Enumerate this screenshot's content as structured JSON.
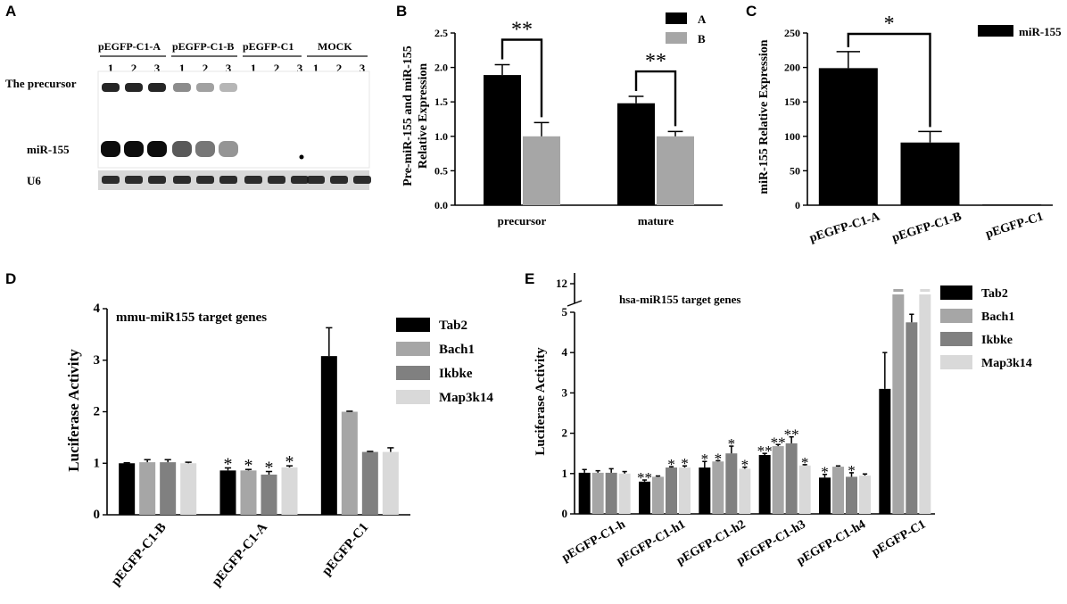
{
  "panel_letters": [
    "A",
    "B",
    "C",
    "D",
    "E"
  ],
  "blot": {
    "groups": [
      "pEGFP-C1-A",
      "pEGFP-C1-B",
      "pEGFP-C1",
      "MOCK"
    ],
    "lanes": [
      "1",
      "2",
      "3"
    ],
    "row_labels": [
      "The precursor",
      "miR-155",
      "U6"
    ]
  },
  "chart_data": [
    {
      "panel": "B",
      "type": "bar",
      "ylabel": "Pre-miR-155 and miR-155\nRelative Expression",
      "xlabel": "",
      "categories": [
        "precursor",
        "mature"
      ],
      "series": [
        {
          "name": "A",
          "color": "#000000",
          "values": [
            1.89,
            1.48
          ],
          "errors": [
            0.15,
            0.1
          ]
        },
        {
          "name": "B",
          "color": "#a6a6a6",
          "values": [
            1.0,
            1.0
          ],
          "errors": [
            0.2,
            0.07
          ]
        }
      ],
      "ylim": [
        0,
        2.5
      ],
      "yticks": [
        "0.0",
        "0.5",
        "1.0",
        "1.5",
        "2.0",
        "2.5"
      ],
      "annotations": [
        "**",
        "**"
      ],
      "legend": "top-right"
    },
    {
      "panel": "C",
      "type": "bar",
      "ylabel": "miR-155 Relative Expression",
      "xlabel": "",
      "categories": [
        "pEGFP-C1-A",
        "pEGFP-C1-B",
        "pEGFP-C1"
      ],
      "series": [
        {
          "name": "miR-155",
          "color": "#000000",
          "values": [
            199,
            91,
            1
          ],
          "errors": [
            24,
            16,
            0
          ]
        }
      ],
      "ylim": [
        0,
        250
      ],
      "yticks": [
        "0",
        "50",
        "100",
        "150",
        "200",
        "250"
      ],
      "annotations": [
        "*"
      ],
      "legend": "top-right"
    },
    {
      "panel": "D",
      "type": "bar",
      "title": "mmu-miR155 target genes",
      "ylabel": "Luciferase Activity",
      "xlabel": "",
      "categories": [
        "pEGFP-C1-B",
        "pEGFP-C1-A",
        "pEGFP-C1"
      ],
      "series": [
        {
          "name": "Tab2",
          "color": "#000000",
          "values": [
            1.0,
            0.86,
            3.08
          ],
          "errors": [
            0.01,
            0.05,
            0.55
          ],
          "stars": [
            "",
            "*",
            ""
          ]
        },
        {
          "name": "Bach1",
          "color": "#a6a6a6",
          "values": [
            1.02,
            0.86,
            2.0
          ],
          "errors": [
            0.05,
            0.02,
            0.01
          ],
          "stars": [
            "",
            "*",
            ""
          ]
        },
        {
          "name": "Ikbke",
          "color": "#808080",
          "values": [
            1.02,
            0.78,
            1.22
          ],
          "errors": [
            0.05,
            0.06,
            0.01
          ],
          "stars": [
            "",
            "*",
            ""
          ]
        },
        {
          "name": "Map3k14",
          "color": "#d9d9d9",
          "values": [
            1.0,
            0.92,
            1.22
          ],
          "errors": [
            0.02,
            0.03,
            0.08
          ],
          "stars": [
            "",
            "*",
            ""
          ]
        }
      ],
      "ylim": [
        0,
        4
      ],
      "yticks": [
        "0",
        "1",
        "2",
        "3",
        "4"
      ],
      "legend": "right"
    },
    {
      "panel": "E",
      "type": "bar",
      "title": "hsa-miR155 target genes",
      "ylabel": "Luciferase Activity",
      "xlabel": "",
      "categories": [
        "pEGFP-C1-h",
        "pEGFP-C1-h1",
        "pEGFP-C1-h2",
        "pEGFP-C1-h3",
        "pEGFP-C1-h4",
        "pEGFP-C1"
      ],
      "series": [
        {
          "name": "Tab2",
          "color": "#000000",
          "values": [
            1.02,
            0.8,
            1.15,
            1.46,
            0.9,
            3.1
          ],
          "errors": [
            0.08,
            0.04,
            0.15,
            0.04,
            0.08,
            0.9
          ],
          "stars": [
            "",
            "**",
            "*",
            "**",
            "*",
            ""
          ]
        },
        {
          "name": "Bach1",
          "color": "#a6a6a6",
          "values": [
            1.02,
            0.92,
            1.3,
            1.68,
            1.17,
            12.1
          ],
          "errors": [
            0.05,
            0.02,
            0.02,
            0.04,
            0.02,
            0.1
          ],
          "stars": [
            "",
            "",
            "*",
            "**",
            "",
            ""
          ]
        },
        {
          "name": "Ikbke",
          "color": "#808080",
          "values": [
            1.02,
            1.15,
            1.5,
            1.75,
            0.92,
            4.75
          ],
          "errors": [
            0.1,
            0.02,
            0.18,
            0.16,
            0.1,
            0.2
          ],
          "stars": [
            "",
            "*",
            "*",
            "**",
            "*",
            ""
          ]
        },
        {
          "name": "Map3k14",
          "color": "#d9d9d9",
          "values": [
            1.0,
            1.15,
            1.12,
            1.2,
            0.95,
            11.9
          ],
          "errors": [
            0.05,
            0.04,
            0.04,
            0.02,
            0.04,
            0.1
          ],
          "stars": [
            "",
            "*",
            "*",
            "*",
            "",
            ""
          ]
        }
      ],
      "ylim": [
        0,
        5
      ],
      "axis_break": {
        "break_label": "12"
      },
      "yticks": [
        "0",
        "1",
        "2",
        "3",
        "4",
        "5"
      ],
      "legend": "right"
    }
  ]
}
